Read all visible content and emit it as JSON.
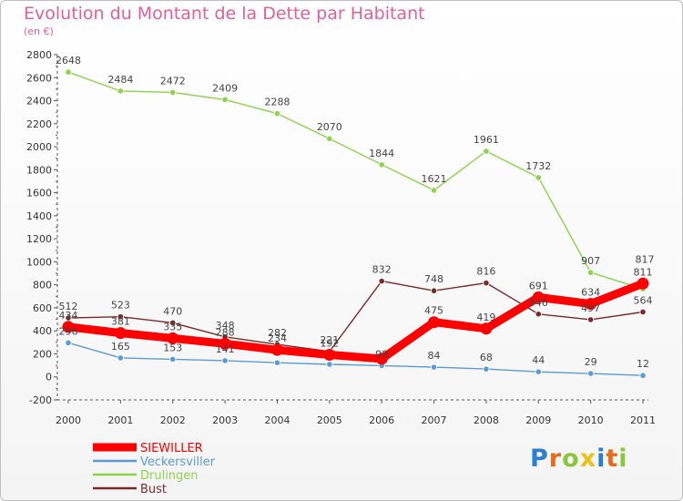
{
  "title": "Evolution du Montant de la Dette par Habitant",
  "subtitle": "(en €)",
  "logo": {
    "text": "Proxiti",
    "colors": [
      "#2a7fd4",
      "#e86a1a",
      "#8cc63f",
      "#e8c21a",
      "#2a7fd4",
      "#e86a1a",
      "#8cc63f"
    ]
  },
  "chart_data": {
    "type": "line",
    "title": "Evolution du Montant de la Dette par Habitant",
    "subtitle": "(en €)",
    "xlabel": "",
    "ylabel": "",
    "x": [
      "2000",
      "2001",
      "2002",
      "2003",
      "2004",
      "2005",
      "2006",
      "2007",
      "2008",
      "2009",
      "2010",
      "2011"
    ],
    "ylim": [
      -200,
      2800
    ],
    "yticks": [
      -200,
      0,
      200,
      400,
      600,
      800,
      1000,
      1200,
      1400,
      1600,
      1800,
      2000,
      2200,
      2400,
      2600,
      2800
    ],
    "grid": false,
    "legend_position": "bottom-left",
    "series": [
      {
        "name": "SIEWILLER",
        "color": "#ff0000",
        "values": [
          434,
          381,
          335,
          288,
          234,
          192,
          157,
          475,
          419,
          691,
          634,
          811
        ],
        "labels": [
          "434",
          "381",
          "335",
          "288",
          "234",
          "192",
          "",
          "475",
          "419",
          "691",
          "634",
          "811"
        ]
      },
      {
        "name": "Veckersviller",
        "color": "#5b9bd5",
        "values": [
          296,
          165,
          153,
          141,
          123,
          109,
          98,
          84,
          68,
          44,
          29,
          12
        ],
        "labels": [
          "296",
          "165",
          "153",
          "141",
          "",
          "",
          "98",
          "84",
          "68",
          "44",
          "29",
          "12"
        ]
      },
      {
        "name": "Drulingen",
        "color": "#8cd24a",
        "values": [
          2648,
          2484,
          2472,
          2409,
          2288,
          2070,
          1844,
          1621,
          1961,
          1732,
          907,
          764
        ],
        "labels": [
          "2648",
          "2484",
          "2472",
          "2409",
          "2288",
          "2070",
          "1844",
          "1621",
          "1961",
          "1732",
          "907",
          ""
        ]
      },
      {
        "name": "Bust",
        "color": "#7b2a2a",
        "values": [
          512,
          523,
          470,
          348,
          282,
          221,
          832,
          748,
          816,
          546,
          497,
          564
        ],
        "labels": [
          "512",
          "523",
          "470",
          "348",
          "282",
          "221",
          "832",
          "748",
          "816",
          "546",
          "497",
          "564"
        ]
      }
    ],
    "extra_labels": [
      "817"
    ]
  }
}
